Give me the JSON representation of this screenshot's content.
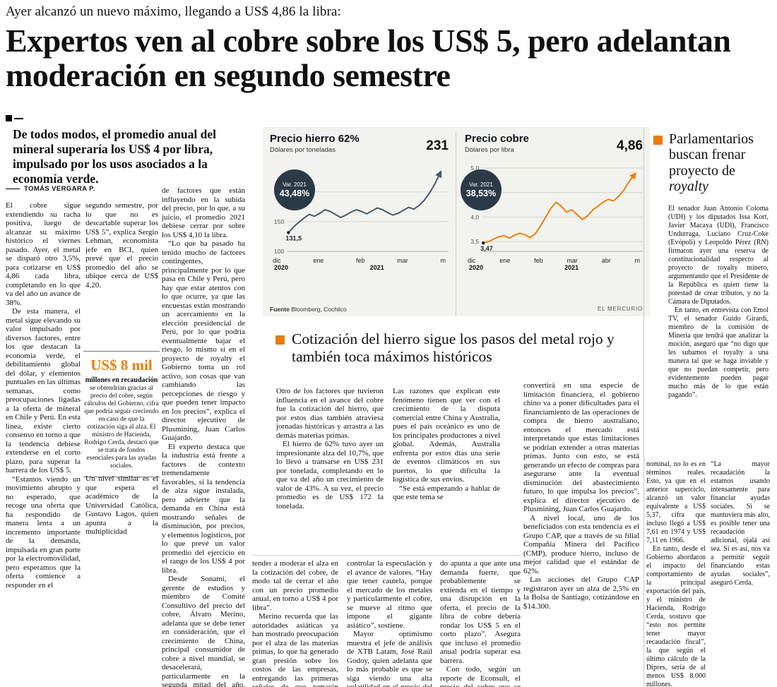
{
  "colors": {
    "accent_orange": "#e87d0e",
    "badge_navy": "#2c3947",
    "iron_line": "#465b6c",
    "copper_line": "#ee7e0c"
  },
  "kicker": "Ayer alcanzó un nuevo máximo, llegando a US$ 4,86 la libra:",
  "headline": "Expertos ven al cobre sobre los US$ 5, pero adelantan moderación en segundo semestre",
  "deck": "De todos modos, el promedio anual del mineral superaría los US$ 4 por libra, impulsado por los usos asociados a la economía verde.",
  "byline": "TOMÁS VERGARA P.",
  "article": {
    "col1": [
      "El cobre sigue extendiendo su racha positiva, luego de alcanzar su máximo histórico el viernes pasado. Ayer, el metal se disparó otro 3,5%, para cotizarse en US$ 4,86 cada libra, completando en lo que va del año un avance de 38%.",
      "De esta manera, el metal sigue elevando su valor impulsado por diversos factores, entre los que destacan la economía verde, el debilitamiento global del dólar, y elementos puntuales en las últimas semanas, como preocupaciones ligadas a la oferta de mineral en Chile y Perú. En esta línea, existe cierto consenso en torno a que la tendencia debiese extenderse en el corto plazo, para superar la barrera de los US$ 5.",
      "“Estamos viendo un movimiento abrupto y no esperado, que recoge una oferta que ha respondido de manera lenta a un incremento importante de la demanda, impulsada en gran parte por la electromovilidad, pero esperamos que la oferta comience a responder en el"
    ],
    "col2_top": [
      "segundo semestre, por lo que no es descartable superar los US$ 5”, explica Sergio Lehman, economista jefe en BCI, quien prevé que el precio promedio del año se ubique cerca de US$ 4,20."
    ],
    "col2_bottom": [
      "Un nivel similar es el que espera el académico de la Universidad Católica, Gustavo Lagos, quien apunta a la multiplicidad"
    ],
    "col3": [
      "de factores que están influyendo en la subida del precio, por lo que, a su juicio, el promedio 2021 debiese cerrar por sobre los US$ 4,10 la libra.",
      "“Lo que ha pasado ha tenido mucho de factores contingentes, principalmente por lo que pasa en Chile y Perú, pero hay que estar atentos con lo que ocurre, ya que las encuestas están mostrando un acercamiento en la elección presidencial de Perú, por lo que podría eventualmente bajar el riesgo, lo mismo si en el proyecto de royalty el Gobierno toma un rol activo, son cosas que van cambiando las percepciones de riesgo y que pueden tener impacto en los precios”, explica el director ejecutivo de Plusmining, Juan Carlos Guajardo.",
      "El experto destaca que la industria está frente a factores de contexto tremendamente favorables, si la tendencia de alza sigue instalada, pero advierte que la demanda en China está mostrando señales de disminución, por precios, y elementos logísticos, por lo que prevé un valor promedio del ejercicio en el rango de los US$ 4 por libra.",
      "Desde Sonami, el gerente de estudios y miembro de Comité Consultivo del precio del cobre, Álvaro Merino, adelanta que se debe tener en consideración, que el crecimiento de China, principal consumidor de cobre a nivel mundial, se desacelerará, particularmente en la segunda mitad del año. “Ello debiera"
    ],
    "cont1": [
      "tender a moderar el alza en la cotización del cobre, de modo tal de cerrar el año con un precio promedio anual, en torno a US$ 4 por libra”.",
      "Merino recuerda que las autoridades asiáticas ya han mostrado preocupación por el alza de las materias primas, lo que ha generado gran presión sobre los costos de las empresas, entregando las primeras señales de que tomarán medidas para"
    ],
    "cont2": [
      "controlar la especulación y el avance de valores. “Hay que tener cautela, porque el mercado de los metales y particularmente el cobre, se mueve al ritmo que impone el gigante asiático”, sostiene.",
      "Mayor optimismo muestra el jefe de análisis de XTB Latam, José Raúl Godoy, quien adelanta que lo más probable es que se siga viendo una alta volatilidad en el precio del metal, “pero to-"
    ],
    "cont3": [
      "do apunta a que ante una demanda fuerte, que probablemente se extienda en el tiempo y una disrupción en la oferta, el precio de la libra de cobre debería rondar los US$ 5 en el corto plazo”. Asegura que incluso el promedio anual podría superar esa barrera.",
      "Con todo, según un reporte de Econsult, el precio del cobre que se ve por estos días si bien corresponde al máximo histórico"
    ],
    "contR1": [
      "nominal, no lo es en términos reales. Esto, ya que en el anterior superciclo, alcanzó un valor equivalente a US$ 5,37, cifra que incluso llegó a US$ 7,61 en 1974 y US$ 7,11 en 1966.",
      "En tanto, desde el Gobierno abordaron el impacto del comportamiento de la principal exportación del país, y el ministro de Hacienda, Rodrigo Cerda, sostuvo que “esto nos permite tener mayor recaudación fiscal”, la que según el último cálculo de la Dipres, sería de al menos US$ 8.000 millones."
    ],
    "contR2": [
      "“La mayor recaudación la estamos usando intensamente para financiar ayudas sociales. Si se mantuviera más alto, es posible tener una recaudación adicional, ojalá así sea. Si es así, nos va a permitir seguir financiando estas ayudas sociales”, aseguró Cerda."
    ]
  },
  "pullquote": {
    "amount": "US$ 8 mil",
    "lead": "millones en recaudación",
    "rest": "se obtendrían gracias al precio del cobre, según cálculos del Gobierno, cifra que podría seguir creciendo en caso de que la cotización siga al alza. El ministro de Hacienda, Rodrigo Cerda, destacó que se trata de fondos esenciales para las ayudas sociales."
  },
  "charts_meta": {
    "source_label": "Fuente",
    "source": "Bloomberg, Cochilco",
    "credit": "EL MERCURIO"
  },
  "chart_data": [
    {
      "type": "line",
      "title": "Precio hierro 62%",
      "subtitle": "Dólares por toneladas",
      "big_value": "231",
      "var_label": "Var. 2021",
      "var_value": "43,48%",
      "start_label": "131,5",
      "color": "#465b6c",
      "ylim": [
        100,
        240
      ],
      "yticks": [
        {
          "v": 200,
          "label": "200"
        },
        {
          "v": 150,
          "label": "150"
        },
        {
          "v": 100,
          "label": "100"
        }
      ],
      "xlabels": [
        "dic",
        "ene",
        "feb",
        "mar",
        "m"
      ],
      "years": [
        "2020",
        "2021"
      ],
      "values": [
        131.5,
        141,
        149,
        156,
        162,
        159,
        164,
        170,
        167,
        162,
        157,
        161,
        166,
        170,
        167,
        163,
        168,
        173,
        170,
        165,
        161,
        164,
        169,
        174,
        171,
        177,
        186,
        198,
        213,
        231
      ]
    },
    {
      "type": "line",
      "title": "Precio cobre",
      "subtitle": "Dólares por libra",
      "big_value": "4,86",
      "var_label": "Var. 2021",
      "var_value": "38,53%",
      "start_label": "3,47",
      "color": "#ee7e0c",
      "ylim": [
        3.3,
        5.0
      ],
      "yticks": [
        {
          "v": 5.0,
          "label": "5,0"
        },
        {
          "v": 4.5,
          "label": "4,5"
        },
        {
          "v": 4.0,
          "label": "4,0"
        },
        {
          "v": 3.5,
          "label": "3,5"
        }
      ],
      "xlabels": [
        "dic",
        "ene",
        "feb",
        "mar",
        "abr",
        "m"
      ],
      "years": [
        "2020",
        "2021"
      ],
      "values": [
        3.47,
        3.5,
        3.55,
        3.6,
        3.62,
        3.57,
        3.63,
        3.67,
        3.64,
        3.58,
        3.66,
        3.82,
        4.0,
        4.18,
        4.3,
        4.22,
        4.1,
        4.15,
        4.05,
        3.95,
        4.02,
        4.14,
        4.22,
        4.3,
        4.36,
        4.33,
        4.42,
        4.55,
        4.72,
        4.86
      ]
    }
  ],
  "subarticle": {
    "headline": "Cotización del hierro sigue los pasos del metal rojo y también toca máximos históricos",
    "col1": [
      "Otro de los factores que tuvieron influencia en el avance del cobre fue la cotización del hierro, que por estos días también atraviesa jornadas históricas y arrastra a las demás materias primas.",
      "El hierro de 62% tuvo ayer un impresionante alza del 10,7%, que lo llevó a transarse en US$ 231 por tonelada, completando en lo que va del año un crecimiento de valor de 43%. A su vez, el precio promedio es de US$ 172 la tonelada."
    ],
    "col2": [
      "Las razones que explican este fenómeno tienen que ver con el crecimiento de la disputa comercial entre China y Australia, pues el país oceánico es uno de los principales productores a nivel global. Además, Australia enfrenta por estos días una serie de eventos climáticos en sus puertos, lo que dificulta la logística de sus envíos.",
      "“Se está empezando a hablar de que este tema se"
    ],
    "col3": [
      "convertirá en una especie de limitación financiera, el gobierno chino va a poner dificultades para el financiamiento de las operaciones de compra de hierro australiano, entonces el mercado está interpretando que estas limitaciones se podrían extender a otras materias primas. Junto con esto, se está generando un efecto de compras para asegurarse ante la eventual disminución del abastecimiento futuro, lo que impulsa los precios”, explica el director ejecutivo de Plusmining, Juan Carlos Guajardo.",
      "A nivel local, uno de los beneficiados con esta tendencia es el Grupo CAP, que a través de su filial Compañía Minera del Pacífico (CMP), produce hierro, incluso de mejor calidad que el estándar de 62%.",
      "Las acciones del Grupo CAP registraron ayer un alza de 2,5% en la Bolsa de Santiago, cotizándose en $14.300."
    ]
  },
  "sidebar": {
    "title_main": "Parlamentarios buscan frenar proyecto de",
    "title_italic": "royalty",
    "paragraphs": [
      "El senador Juan Antonio Coloma (UDI) y los diputados Issa Kort, Javier Macaya (UDI), Francisco Undurraga, Luciano Cruz-Coke (Evópoli) y Leopoldo Pérez (RN) firmaron ayer una reserva de constitucionalidad respecto al proyecto de royalty minero, argumentando que el Presidente de la República es quien tiene la potestad de crear tributos, y no la Cámara de Diputados.",
      "En tanto, en entrevista con Emol TV, el senador Guido Girardi, miembro de la comisión de Minería que tendrá que analizar la moción, aseguró que “no digo que les subamos el royalty a una manera tal que se haga inviable y que no puedan competir, pero evidentemente pueden pagar mucho más de lo que están pagando”."
    ]
  }
}
